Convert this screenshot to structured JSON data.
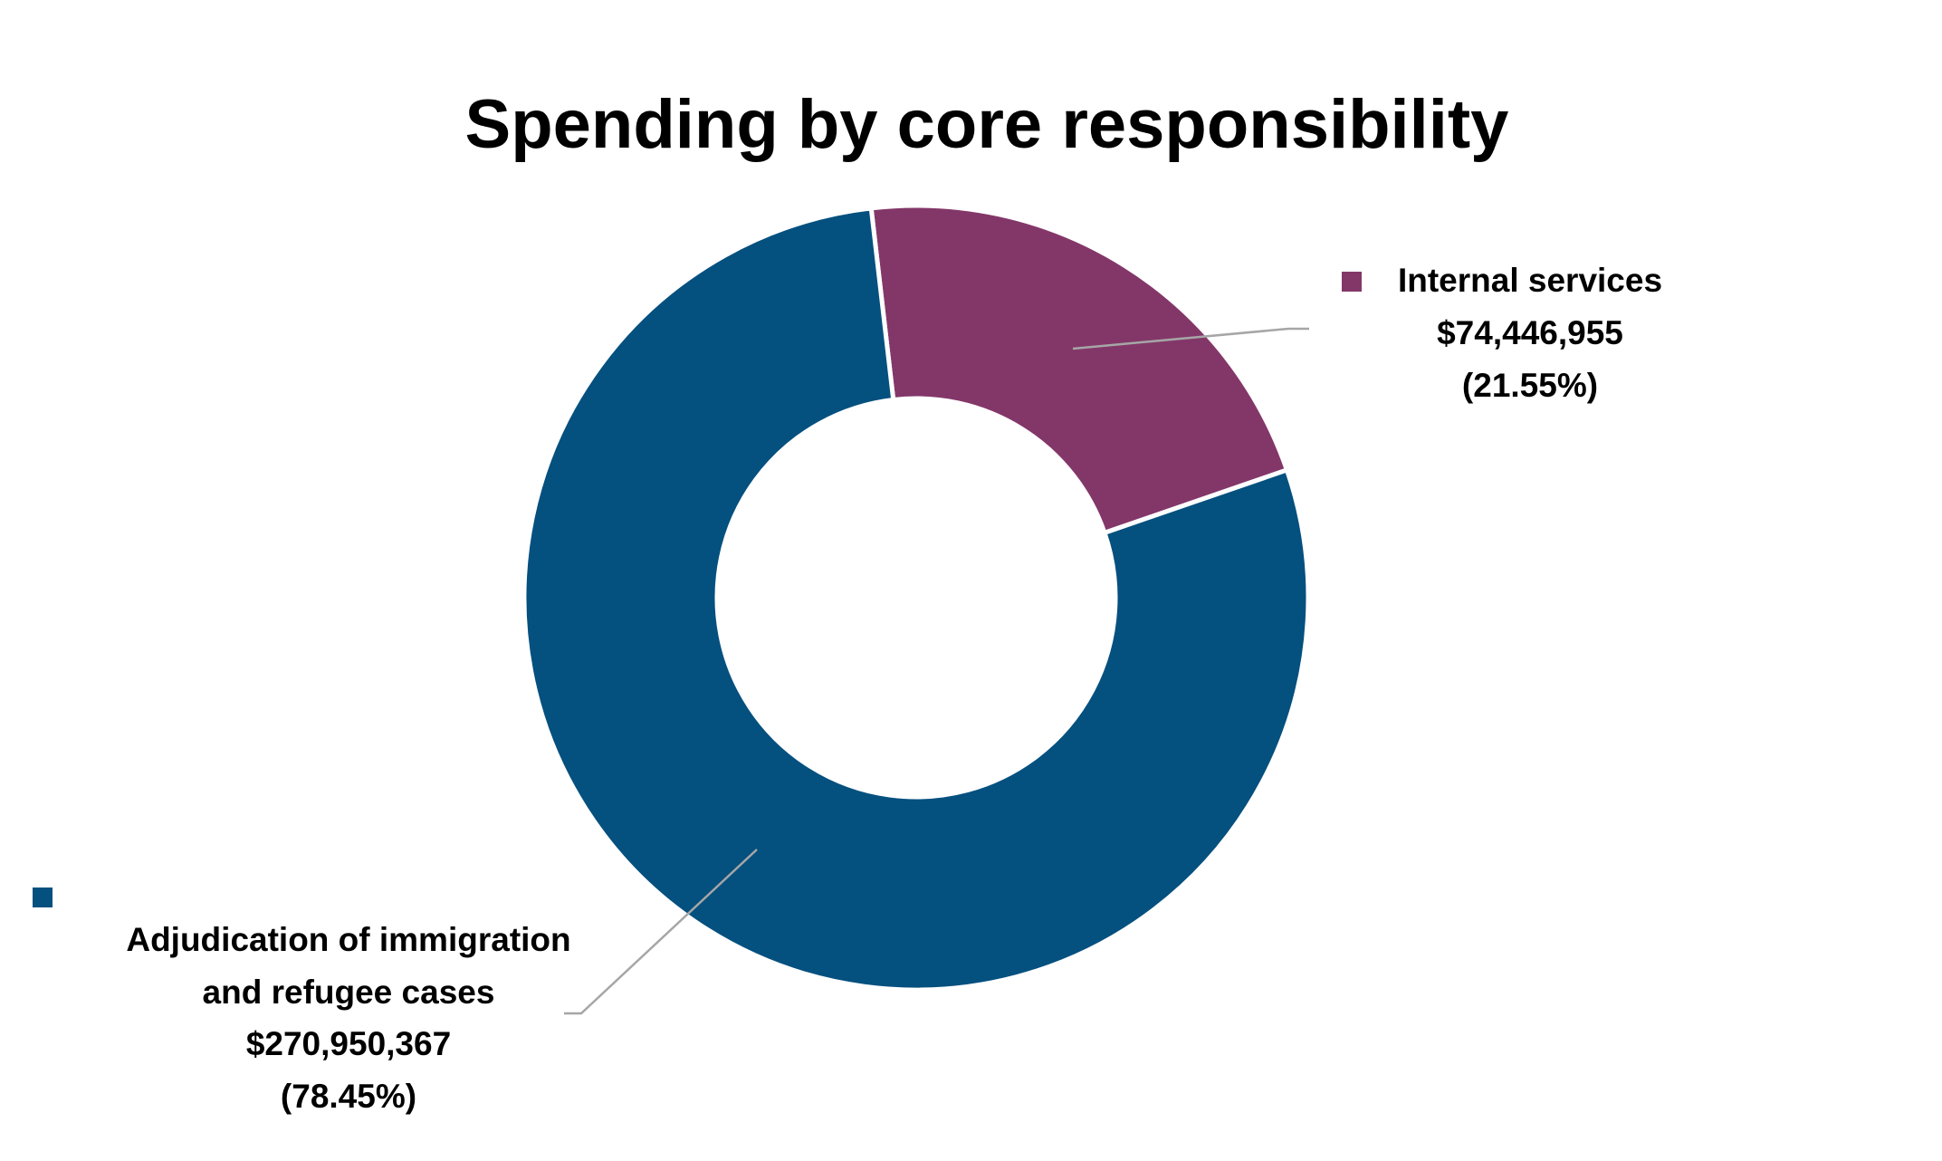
{
  "chart_data": {
    "type": "pie",
    "variant": "donut",
    "title": "Spending by core responsibility",
    "legend": "none",
    "slices": [
      {
        "name": "Internal services",
        "value": 74446955,
        "value_label": "$74,446,955",
        "percent": 21.55,
        "percent_label": "(21.55%)",
        "color": "#833769"
      },
      {
        "name": "Adjudication of immigration and refugee cases",
        "name_lines": [
          "Adjudication of immigration",
          "and refugee cases"
        ],
        "value": 270950367,
        "value_label": "$270,950,367",
        "percent": 78.45,
        "percent_label": "(78.45%)",
        "color": "#04507F"
      }
    ],
    "leader_line_color": "#A6A6A6"
  }
}
